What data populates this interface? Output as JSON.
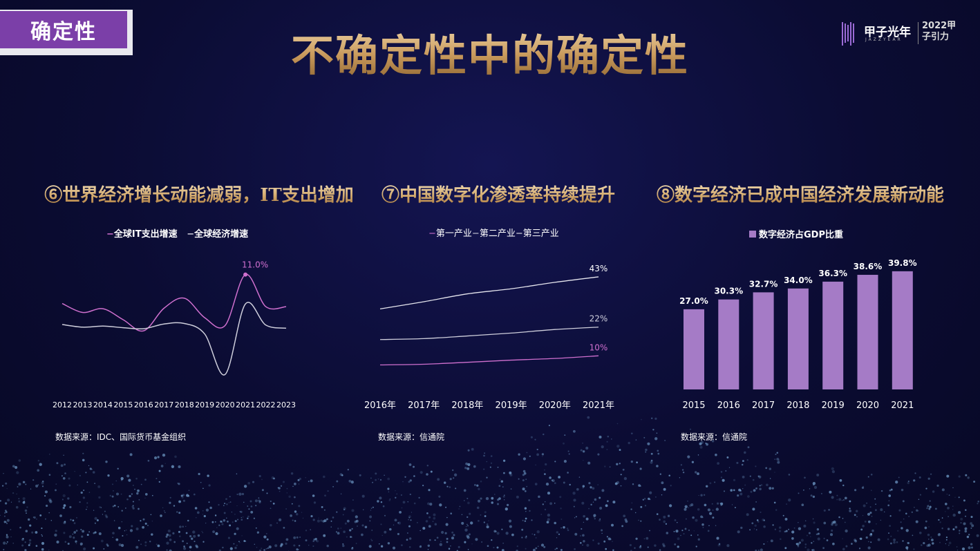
{
  "header": {
    "tag": "确定性",
    "title": "不确定性中的确定性",
    "logo_name": "甲子光年",
    "logo_sub": "JAZZYEAR",
    "logo_event": "2022甲子引力"
  },
  "colors": {
    "purple": "#a57bc6",
    "pink": "#d070cf",
    "gray": "#cfcfdc",
    "gold": "#d2a86b"
  },
  "chart_data": [
    {
      "type": "line",
      "title": "⑥世界经济增长动能减弱，IT支出增加",
      "x": [
        "2012",
        "2013",
        "2014",
        "2015",
        "2016",
        "2017",
        "2018",
        "2019",
        "2020",
        "2021",
        "2022",
        "2023"
      ],
      "series": [
        {
          "name": "全球IT支出增速",
          "values": [
            5.5,
            3.8,
            4.5,
            2.4,
            0.3,
            4.6,
            6.5,
            2.8,
            1.3,
            11.0,
            4.9,
            4.9
          ]
        },
        {
          "name": "全球经济增速",
          "values": [
            1.5,
            1.0,
            1.2,
            0.9,
            0.7,
            1.6,
            1.7,
            -0.3,
            -8.0,
            5.4,
            1.4,
            0.8
          ]
        }
      ],
      "annotations": [
        {
          "x": "2021",
          "series": "全球IT支出增速",
          "label": "11.0%"
        }
      ],
      "source": "数据来源：IDC、国际货币基金组织"
    },
    {
      "type": "line",
      "title": "⑦中国数字化渗透率持续提升",
      "x": [
        "2016年",
        "2017年",
        "2018年",
        "2019年",
        "2020年",
        "2021年"
      ],
      "series": [
        {
          "name": "第一产业",
          "values": [
            6.2,
            6.5,
            7.3,
            8.2,
            8.9,
            10
          ]
        },
        {
          "name": "第二产业",
          "values": [
            16.8,
            17.2,
            18.3,
            19.5,
            21.0,
            22
          ]
        },
        {
          "name": "第三产业",
          "values": [
            29.6,
            32.6,
            35.9,
            38.0,
            40.7,
            43
          ]
        }
      ],
      "end_labels": [
        "10%",
        "22%",
        "43%"
      ],
      "source": "数据来源：信通院"
    },
    {
      "type": "bar",
      "title": "⑧数字经济已成中国经济发展新动能",
      "categories": [
        "2015",
        "2016",
        "2017",
        "2018",
        "2019",
        "2020",
        "2021"
      ],
      "series": [
        {
          "name": "数字经济占GDP比重",
          "values": [
            27.0,
            30.3,
            32.7,
            34.0,
            36.3,
            38.6,
            39.8
          ]
        }
      ],
      "labels": [
        "27.0%",
        "30.3%",
        "32.7%",
        "34.0%",
        "36.3%",
        "38.6%",
        "39.8%"
      ],
      "source": "数据来源：信通院"
    }
  ]
}
